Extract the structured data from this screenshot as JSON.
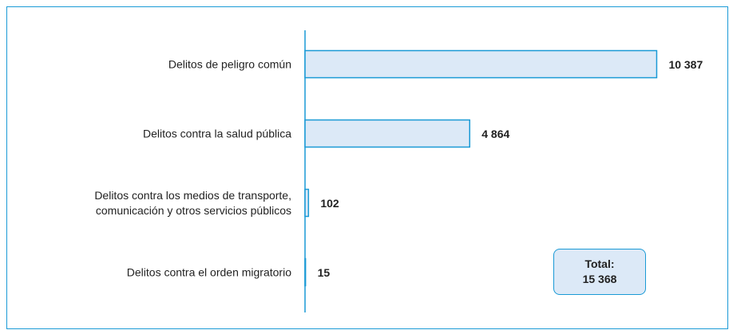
{
  "chart_data": {
    "type": "barh",
    "categories": [
      "Delitos de peligro común",
      "Delitos contra la salud pública",
      "Delitos contra los medios de transporte,\ncomunicación y otros servicios públicos",
      "Delitos contra el orden migratorio"
    ],
    "values": [
      10387,
      4864,
      102,
      15
    ],
    "value_labels": [
      "10 387",
      "4 864",
      "102",
      "15"
    ],
    "color": "#dce9f7",
    "edge_color": "#1a9ad6",
    "xlim": [
      0,
      10400
    ],
    "annotation": {
      "title": "Total:",
      "value": "15 368"
    }
  }
}
